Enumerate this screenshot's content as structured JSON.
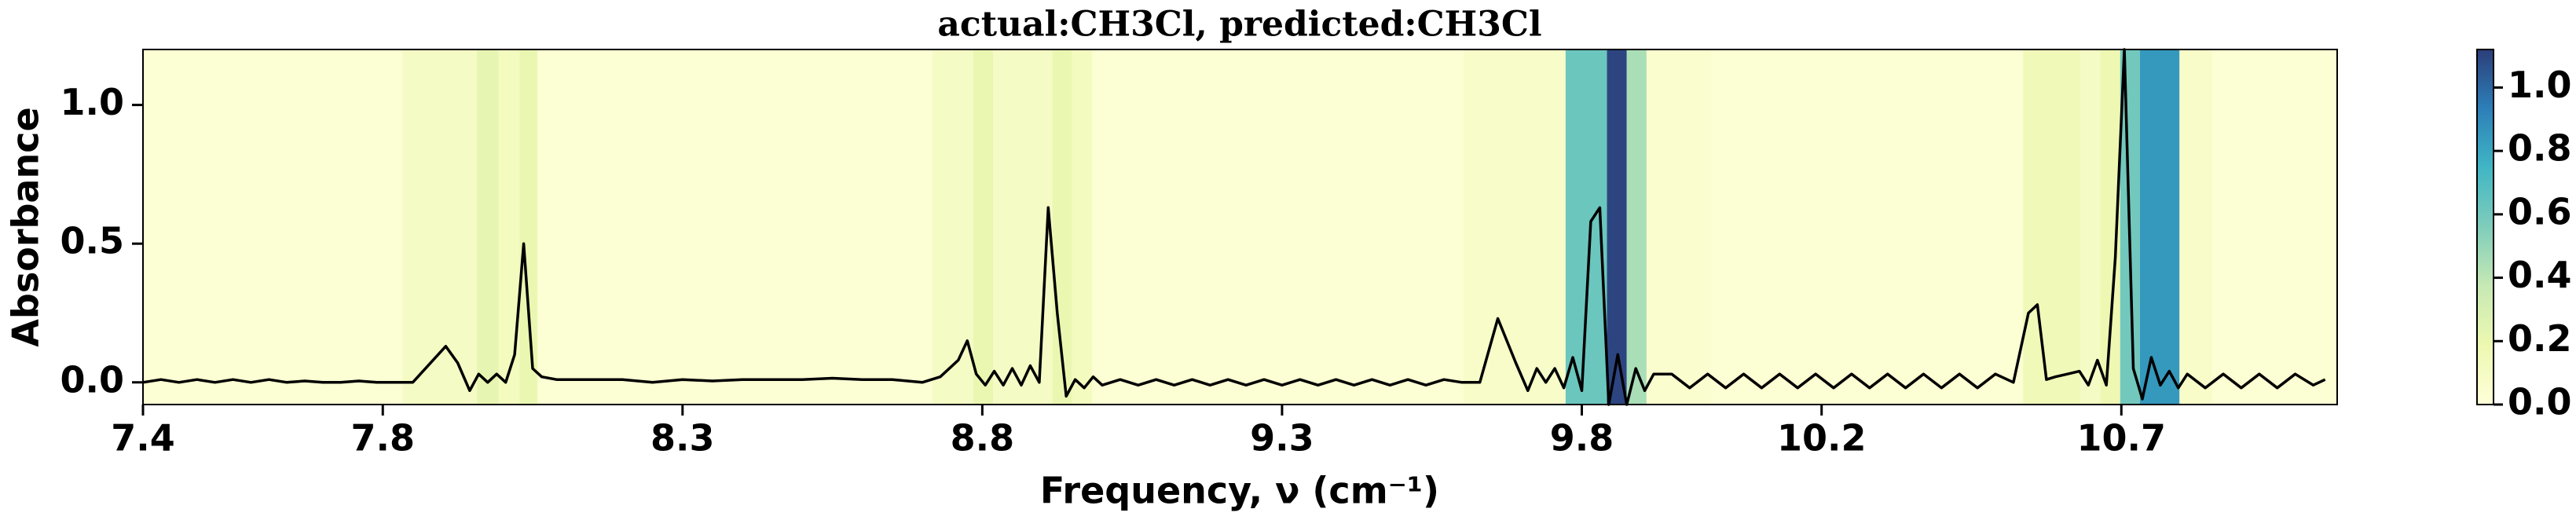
{
  "chart_data": {
    "type": "line",
    "title": "actual:CH3Cl, predicted:CH3Cl",
    "xlabel": "Frequency, ν (cm⁻¹)",
    "ylabel": "Absorbance",
    "xlim": [
      7.4,
      11.06
    ],
    "ylim": [
      -0.08,
      1.2
    ],
    "xticks": [
      7.4,
      7.8,
      8.3,
      8.8,
      9.3,
      9.8,
      10.2,
      10.7
    ],
    "yticks": [
      {
        "value": 0,
        "label": "0.0"
      },
      {
        "value": 0.5,
        "label": "0.5"
      },
      {
        "value": 1,
        "label": "1.0"
      }
    ],
    "series": [
      {
        "color": "#000000",
        "x": [
          7.4,
          7.43,
          7.46,
          7.49,
          7.52,
          7.55,
          7.58,
          7.61,
          7.64,
          7.67,
          7.7,
          7.73,
          7.76,
          7.79,
          7.85,
          7.905,
          7.925,
          7.945,
          7.96,
          7.975,
          7.99,
          8.005,
          8.02,
          8.035,
          8.05,
          8.065,
          8.09,
          8.12,
          8.16,
          8.2,
          8.25,
          8.3,
          8.35,
          8.4,
          8.45,
          8.5,
          8.55,
          8.6,
          8.65,
          8.7,
          8.73,
          8.76,
          8.775,
          8.79,
          8.805,
          8.82,
          8.835,
          8.85,
          8.865,
          8.88,
          8.895,
          8.91,
          8.925,
          8.94,
          8.955,
          8.97,
          8.985,
          9.0,
          9.03,
          9.06,
          9.09,
          9.12,
          9.15,
          9.18,
          9.21,
          9.24,
          9.27,
          9.3,
          9.33,
          9.36,
          9.39,
          9.42,
          9.45,
          9.48,
          9.51,
          9.54,
          9.57,
          9.6,
          9.63,
          9.66,
          9.69,
          9.71,
          9.725,
          9.74,
          9.755,
          9.77,
          9.785,
          9.8,
          9.815,
          9.83,
          9.845,
          9.86,
          9.875,
          9.89,
          9.905,
          9.92,
          9.95,
          9.98,
          10.01,
          10.04,
          10.07,
          10.1,
          10.13,
          10.16,
          10.19,
          10.22,
          10.25,
          10.28,
          10.31,
          10.34,
          10.37,
          10.4,
          10.43,
          10.46,
          10.49,
          10.52,
          10.545,
          10.56,
          10.575,
          10.59,
          10.61,
          10.63,
          10.645,
          10.66,
          10.675,
          10.69,
          10.705,
          10.72,
          10.735,
          10.75,
          10.765,
          10.78,
          10.795,
          10.81,
          10.84,
          10.87,
          10.9,
          10.93,
          10.96,
          10.99,
          11.02,
          11.04
        ],
        "values": [
          0,
          0.01,
          0,
          0.01,
          0,
          0.01,
          0,
          0.01,
          0,
          0.005,
          0,
          0,
          0.005,
          0,
          0,
          0.13,
          0.07,
          -0.03,
          0.03,
          0,
          0.03,
          0,
          0.1,
          0.5,
          0.05,
          0.02,
          0.01,
          0.01,
          0.01,
          0.01,
          0,
          0.01,
          0.005,
          0.01,
          0.01,
          0.01,
          0.015,
          0.01,
          0.01,
          0,
          0.02,
          0.08,
          0.15,
          0.03,
          -0.01,
          0.04,
          -0.01,
          0.05,
          -0.01,
          0.06,
          0,
          0.63,
          0.25,
          -0.05,
          0.01,
          -0.02,
          0.02,
          -0.01,
          0.01,
          -0.01,
          0.01,
          -0.01,
          0.01,
          -0.01,
          0.01,
          -0.01,
          0.01,
          -0.01,
          0.01,
          -0.01,
          0.01,
          -0.01,
          0.01,
          -0.01,
          0.01,
          -0.01,
          0.01,
          0,
          0,
          0.23,
          0.07,
          -0.03,
          0.05,
          0,
          0.05,
          -0.02,
          0.09,
          -0.03,
          0.58,
          0.63,
          -0.08,
          0.1,
          -0.08,
          0.05,
          -0.03,
          0.03,
          0.03,
          -0.02,
          0.03,
          -0.02,
          0.03,
          -0.02,
          0.03,
          -0.02,
          0.03,
          -0.02,
          0.03,
          -0.02,
          0.03,
          -0.02,
          0.03,
          -0.02,
          0.03,
          -0.02,
          0.03,
          0,
          0.25,
          0.28,
          0.01,
          0.02,
          0.03,
          0.04,
          -0.01,
          0.08,
          -0.01,
          0.45,
          1.2,
          0.05,
          -0.06,
          0.09,
          -0.01,
          0.04,
          -0.02,
          0.03,
          -0.02,
          0.03,
          -0.02,
          0.03,
          -0.02,
          0.03,
          -0.01,
          0.01
        ]
      }
    ],
    "heatmap": {
      "edges": [
        7.4,
        7.833,
        7.957,
        7.993,
        8.028,
        8.058,
        8.717,
        8.785,
        8.818,
        8.917,
        8.95,
        8.983,
        9.603,
        9.773,
        9.842,
        9.875,
        9.908,
        10.015,
        10.536,
        10.632,
        10.665,
        10.698,
        10.731,
        10.797,
        10.851,
        11.06
      ],
      "values": [
        0.03,
        0.1,
        0.22,
        0.12,
        0.2,
        0.03,
        0.1,
        0.2,
        0.1,
        0.2,
        0.12,
        0.03,
        0.08,
        0.62,
        1.1,
        0.45,
        0.05,
        0.03,
        0.15,
        0.1,
        0.18,
        0.6,
        0.85,
        0.08,
        0.03
      ],
      "colormap": [
        "#ffffd9",
        "#edf8b1",
        "#c7e9b4",
        "#7fcdbb",
        "#41b6c4",
        "#2c7fb8",
        "#2c3e7a"
      ],
      "clim": [
        0,
        1.12
      ],
      "cticks": [
        {
          "value": 0,
          "label": "0.0"
        },
        {
          "value": 0.2,
          "label": "0.2"
        },
        {
          "value": 0.4,
          "label": "0.4"
        },
        {
          "value": 0.6,
          "label": "0.6"
        },
        {
          "value": 0.8,
          "label": "0.8"
        },
        {
          "value": 1,
          "label": "1.0"
        }
      ]
    }
  }
}
